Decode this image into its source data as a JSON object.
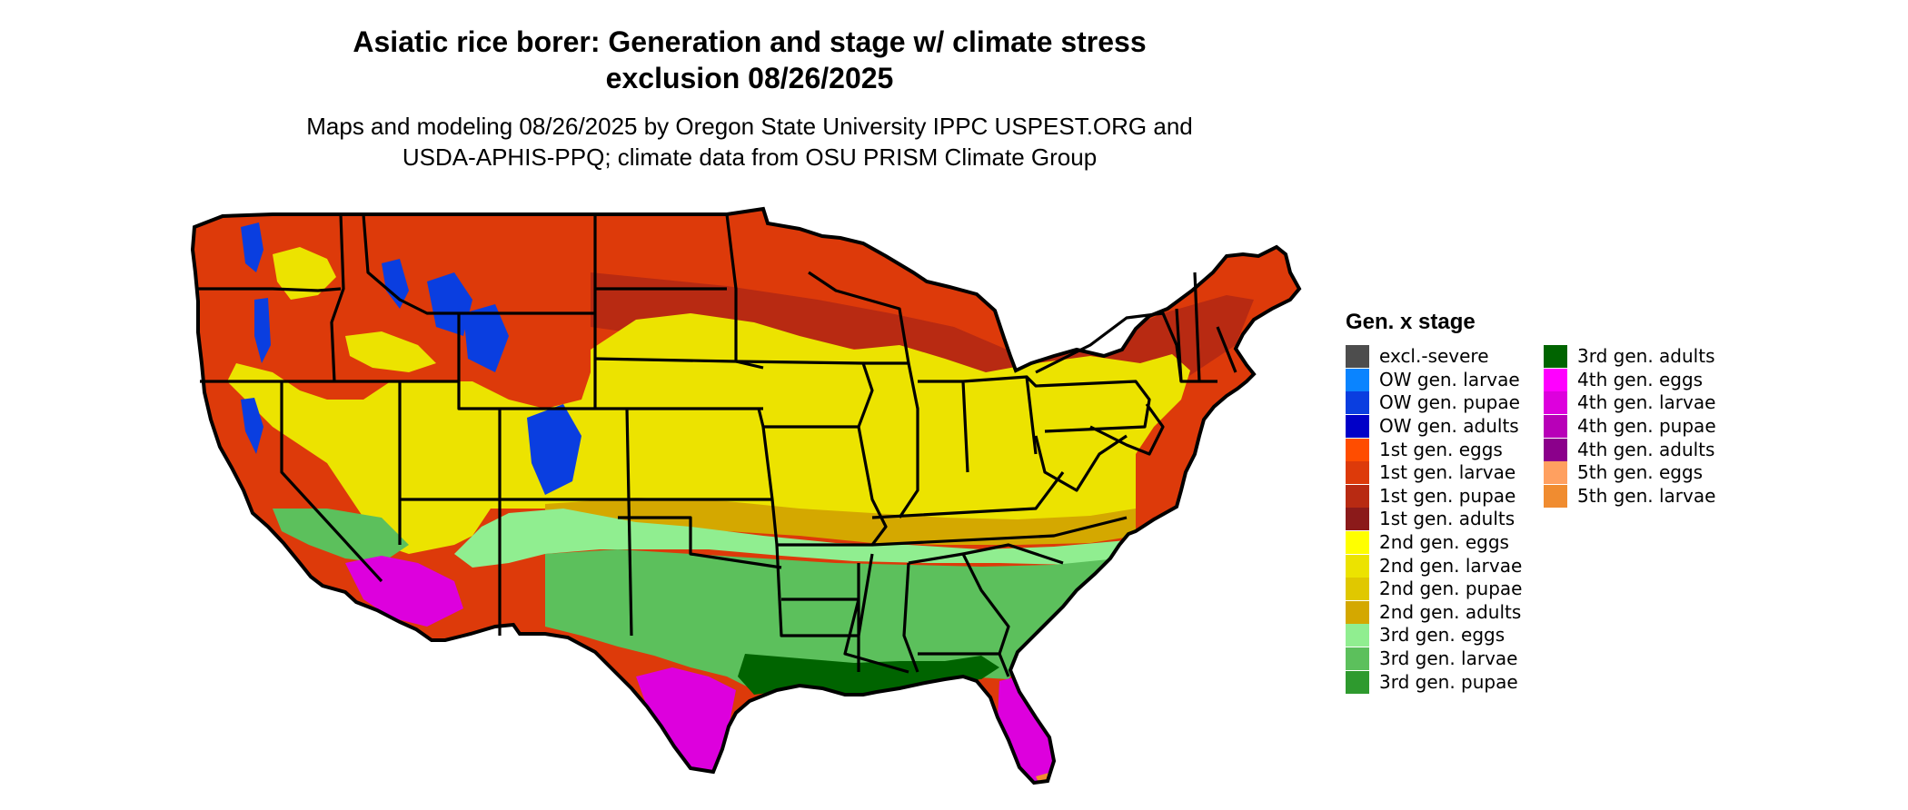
{
  "title_line1": "Asiatic rice borer: Generation and stage w/ climate stress",
  "title_line2": "exclusion 08/26/2025",
  "subtitle_line1": "Maps and modeling 08/26/2025 by Oregon State University IPPC USPEST.ORG and",
  "subtitle_line2": "USDA-APHIS-PPQ; climate data from OSU PRISM Climate Group",
  "legend": {
    "title": "Gen. x stage",
    "column1": [
      {
        "label": "excl.-severe",
        "color": "#4d4d4d"
      },
      {
        "label": "OW gen. larvae",
        "color": "#0a84ff"
      },
      {
        "label": "OW gen. pupae",
        "color": "#0a3ee0"
      },
      {
        "label": "OW gen. adults",
        "color": "#0000c8"
      },
      {
        "label": "1st gen. eggs",
        "color": "#ff4d00"
      },
      {
        "label": "1st gen. larvae",
        "color": "#dd3a0a"
      },
      {
        "label": "1st gen. pupae",
        "color": "#b82a12"
      },
      {
        "label": "1st gen. adults",
        "color": "#8b1a1a"
      },
      {
        "label": "2nd gen. eggs",
        "color": "#ffff00"
      },
      {
        "label": "2nd gen. larvae",
        "color": "#ece300"
      },
      {
        "label": "2nd gen. pupae",
        "color": "#e0c800"
      },
      {
        "label": "2nd gen. adults",
        "color": "#d4a800"
      },
      {
        "label": "3rd gen. eggs",
        "color": "#90ee90"
      },
      {
        "label": "3rd gen. larvae",
        "color": "#5cc05c"
      },
      {
        "label": "3rd gen. pupae",
        "color": "#2e9a2e"
      }
    ],
    "column2": [
      {
        "label": "3rd gen. adults",
        "color": "#006400"
      },
      {
        "label": "4th gen. eggs",
        "color": "#ff00ff"
      },
      {
        "label": "4th gen. larvae",
        "color": "#dd00dd"
      },
      {
        "label": "4th gen. pupae",
        "color": "#b800b8"
      },
      {
        "label": "4th gen. adults",
        "color": "#8b008b"
      },
      {
        "label": "5th gen. eggs",
        "color": "#ffa060"
      },
      {
        "label": "5th gen. larvae",
        "color": "#f08c30"
      }
    ]
  },
  "map": {
    "region": "Contiguous United States",
    "zones": [
      {
        "stage": "1st gen. larvae",
        "area": "northern tier and western mountains",
        "color": "#dd3a0a"
      },
      {
        "stage": "1st gen. pupae",
        "area": "band across northern plains and Great Lakes",
        "color": "#b82a12"
      },
      {
        "stage": "OW gen. pupae",
        "area": "high elevations of the Rockies and Cascades",
        "color": "#0a3ee0"
      },
      {
        "stage": "2nd gen. larvae",
        "area": "central plains, Midwest and mid-Atlantic",
        "color": "#ece300"
      },
      {
        "stage": "2nd gen. adults",
        "area": "band across the mid-South",
        "color": "#d4a800"
      },
      {
        "stage": "3rd gen. eggs",
        "area": "northern edge of southern states",
        "color": "#90ee90"
      },
      {
        "stage": "3rd gen. larvae",
        "area": "Southeast and southern plains",
        "color": "#5cc05c"
      },
      {
        "stage": "3rd gen. adults",
        "area": "Gulf coast",
        "color": "#006400"
      },
      {
        "stage": "4th gen. larvae",
        "area": "Florida, south Texas, southern Arizona and California desert",
        "color": "#dd00dd"
      },
      {
        "stage": "5th gen. larvae",
        "area": "southern tip of Florida",
        "color": "#f08c30"
      }
    ]
  }
}
